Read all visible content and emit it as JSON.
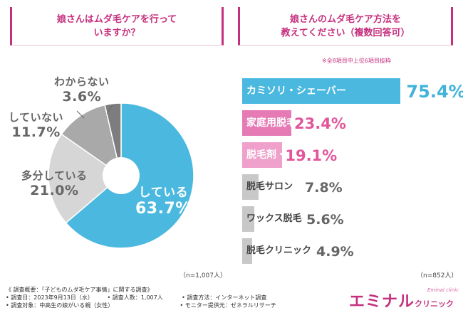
{
  "left_panel": {
    "title_line1": "娘さんはムダ毛ケアを行って",
    "title_line2": "いますか？",
    "n_note": "（n=1,007人）"
  },
  "right_panel": {
    "title_line1": "娘さんのムダ毛ケア方法を",
    "title_line2": "教えてください（複数回答可）",
    "subnote": "※全8項目中上位6項目抜粋",
    "n_note": "（n=852人）"
  },
  "chart_data": [
    {
      "type": "pie",
      "title": "娘さんはムダ毛ケアを行っていますか？",
      "style": "donut",
      "slices": [
        {
          "label": "している",
          "value": 63.7,
          "display": "63.7%",
          "color": "#4ab8df"
        },
        {
          "label": "多分している",
          "value": 21.0,
          "display": "21.0%",
          "color": "#d6d6d6"
        },
        {
          "label": "していない",
          "value": 11.7,
          "display": "11.7%",
          "color": "#a9a9a9"
        },
        {
          "label": "わからない",
          "value": 3.6,
          "display": "3.6%",
          "color": "#7d7d7d"
        }
      ]
    },
    {
      "type": "bar",
      "orientation": "horizontal",
      "title": "娘さんのムダ毛ケア方法を教えてください（複数回答可）",
      "xlim": [
        0,
        100
      ],
      "categories": [
        "カミソリ・シェーバー",
        "家庭用脱毛器",
        "脱毛剤・除毛剤",
        "脱毛サロン",
        "ワックス脱毛",
        "脱毛クリニック"
      ],
      "values": [
        75.4,
        23.4,
        19.1,
        7.8,
        5.6,
        4.9
      ],
      "displays": [
        "75.4%",
        "23.4%",
        "19.1%",
        "7.8%",
        "5.6%",
        "4.9%"
      ],
      "colors": [
        "#4ab8df",
        "#e57ab5",
        "#efa0cb",
        "#c8c8c8",
        "#c8c8c8",
        "#c8c8c8"
      ]
    }
  ],
  "footer": {
    "heading": "《 調査概要：「子どものムダ毛ケア事情」に関する調査》",
    "date": "• 調査日：2023年9月13日（水）",
    "count": "• 調査人数：1,007人",
    "method": "• 調査方法：インターネット調査",
    "target": "• 調査対象：中高生の娘がいる親（女性）",
    "provider": "• モニター提供元：ゼネラルリサーチ"
  },
  "brand": {
    "name_big": "エミナル",
    "name_small": "クリニック",
    "tagline": "Eminal clinic"
  }
}
